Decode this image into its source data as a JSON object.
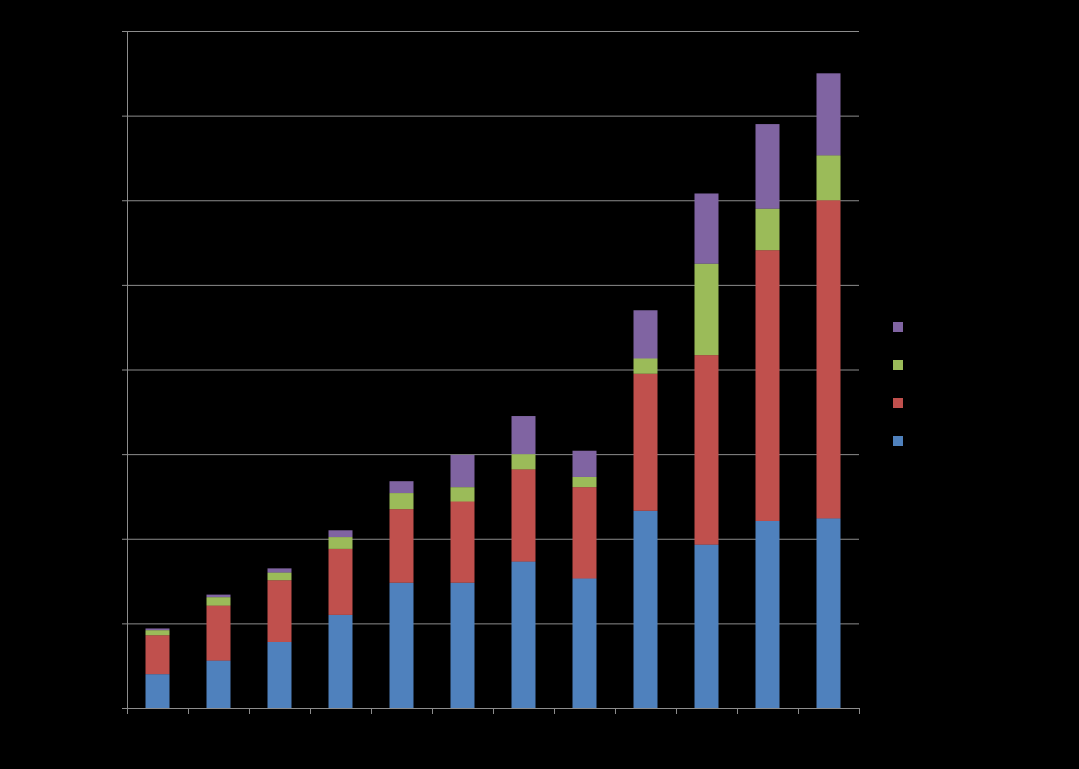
{
  "chart_data": {
    "type": "bar",
    "stacked": true,
    "title": "",
    "xlabel": "",
    "ylabel": "",
    "categories": [
      "",
      "",
      "",
      "",
      "",
      "",
      "",
      "",
      "",
      "",
      "",
      ""
    ],
    "ylim": [
      0,
      8
    ],
    "y_gridlines": [
      1,
      2,
      3,
      4,
      5,
      6,
      7,
      8
    ],
    "grid": true,
    "legend_position": "right",
    "background": "#000000",
    "gridline_color": "#8c8c8c",
    "series": [
      {
        "color": "#4f81bd",
        "values": [
          0.4,
          0.56,
          0.78,
          1.1,
          1.48,
          1.48,
          1.73,
          1.53,
          2.33,
          1.93,
          2.21,
          2.24
        ]
      },
      {
        "color": "#c0504d",
        "values": [
          0.46,
          0.65,
          0.73,
          0.78,
          0.87,
          0.96,
          1.09,
          1.08,
          1.62,
          2.24,
          3.2,
          3.76
        ]
      },
      {
        "color": "#9bbb59",
        "values": [
          0.06,
          0.1,
          0.09,
          0.14,
          0.19,
          0.17,
          0.18,
          0.12,
          0.18,
          1.08,
          0.49,
          0.53
        ]
      },
      {
        "color": "#8064a2",
        "values": [
          0.02,
          0.03,
          0.05,
          0.08,
          0.14,
          0.38,
          0.45,
          0.31,
          0.57,
          0.83,
          1.0,
          0.97
        ]
      }
    ]
  }
}
